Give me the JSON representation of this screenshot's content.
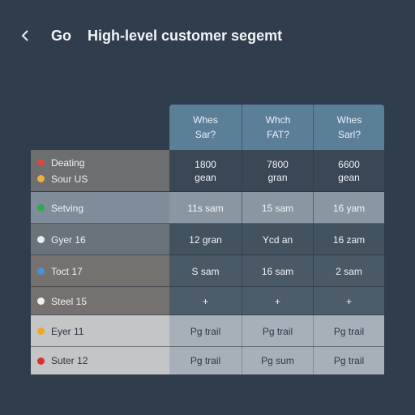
{
  "header": {
    "back_glyph": "back-chevron-icon",
    "go_label": "Go",
    "title": "High-level customer segemt"
  },
  "table": {
    "columns": [
      {
        "label": "Whes\nSar?"
      },
      {
        "label": "Whch\nFAT?"
      },
      {
        "label": "Whes\nSarl?"
      }
    ],
    "rows": [
      {
        "labels": [
          {
            "text": "Deating",
            "dot": "#d9483b"
          },
          {
            "text": "Sour US",
            "dot": "#e9b33a"
          }
        ],
        "cells": [
          "1800\ngean",
          "7800\ngran",
          "6600\ngean"
        ]
      },
      {
        "labels": [
          {
            "text": "Setving",
            "dot": "#2fa84f"
          }
        ],
        "cells": [
          "11s sam",
          "15 sam",
          "16 yam"
        ]
      },
      {
        "labels": [
          {
            "text": "Gyer 16",
            "dot": "#e7ecef"
          }
        ],
        "cells": [
          "12 gran",
          "Ycd an",
          "16 zam"
        ]
      },
      {
        "labels": [
          {
            "text": "Toct 17",
            "dot": "#4a90d9"
          }
        ],
        "cells": [
          "S sam",
          "16 sam",
          "2 sam"
        ]
      },
      {
        "labels": [
          {
            "text": "Steel 15",
            "dot": "#f0f0f0"
          }
        ],
        "cells": [
          "+",
          "+",
          "+"
        ]
      },
      {
        "labels": [
          {
            "text": "Eyer 11",
            "dot": "#f2a623"
          }
        ],
        "cells": [
          "Pg trail",
          "Pg trail",
          "Pg trail"
        ]
      },
      {
        "labels": [
          {
            "text": "Suter 12",
            "dot": "#d8322c"
          }
        ],
        "cells": [
          "Pg trail",
          "Pg sum",
          "Pg trail"
        ]
      }
    ]
  },
  "colors": {
    "background": "#2f3d4c",
    "header_accent": "#5c7f98"
  }
}
